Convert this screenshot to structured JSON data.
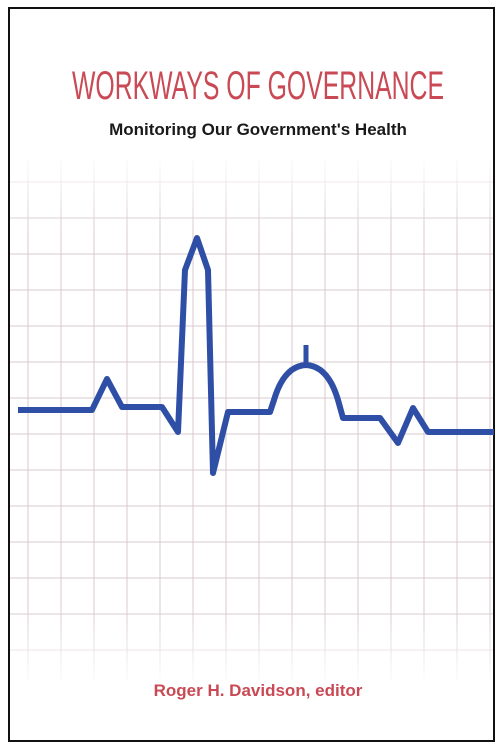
{
  "cover": {
    "title": "WORKWAYS OF GOVERNANCE",
    "subtitle": "Monitoring Our Government's Health",
    "author": "Roger H. Davidson, editor"
  }
}
